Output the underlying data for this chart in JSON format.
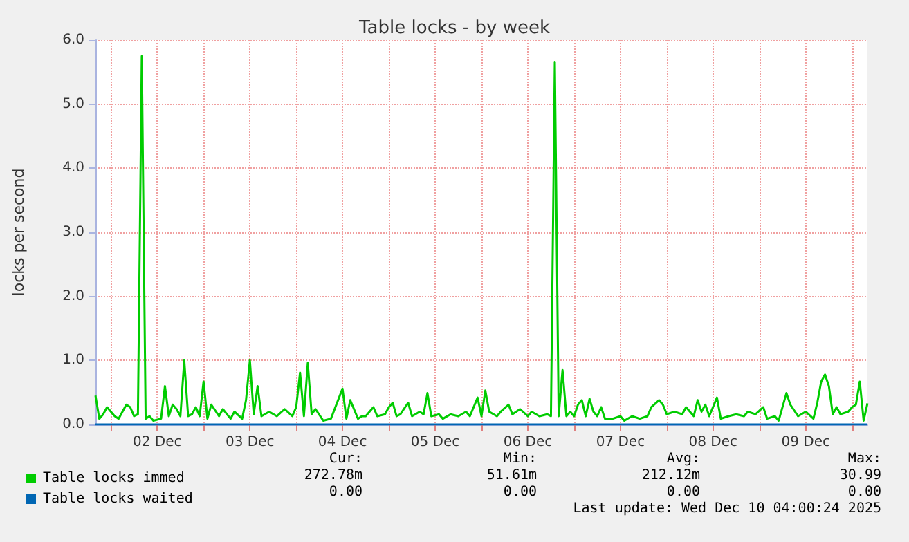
{
  "chart_data": {
    "type": "line",
    "title": "Table locks - by week",
    "ylabel": "locks per second",
    "xlim": [
      "2025-12-01T20:00",
      "2025-12-10T04:00"
    ],
    "xticks": [
      {
        "value": "2025-12-02T00:00",
        "label": null
      },
      {
        "value": "2025-12-02T12:00",
        "label": "02 Dec"
      },
      {
        "value": "2025-12-03T00:00",
        "label": null
      },
      {
        "value": "2025-12-03T12:00",
        "label": "03 Dec"
      },
      {
        "value": "2025-12-04T00:00",
        "label": null
      },
      {
        "value": "2025-12-04T12:00",
        "label": "04 Dec"
      },
      {
        "value": "2025-12-05T00:00",
        "label": null
      },
      {
        "value": "2025-12-05T12:00",
        "label": "05 Dec"
      },
      {
        "value": "2025-12-06T00:00",
        "label": null
      },
      {
        "value": "2025-12-06T12:00",
        "label": "06 Dec"
      },
      {
        "value": "2025-12-07T00:00",
        "label": null
      },
      {
        "value": "2025-12-07T12:00",
        "label": "07 Dec"
      },
      {
        "value": "2025-12-08T00:00",
        "label": null
      },
      {
        "value": "2025-12-08T12:00",
        "label": "08 Dec"
      },
      {
        "value": "2025-12-09T00:00",
        "label": null
      },
      {
        "value": "2025-12-09T12:00",
        "label": "09 Dec"
      },
      {
        "value": "2025-12-10T00:00",
        "label": null
      }
    ],
    "ylim": [
      0,
      6
    ],
    "yticks": [
      {
        "value": 0,
        "label": "0.0"
      },
      {
        "value": 1,
        "label": "1.0"
      },
      {
        "value": 2,
        "label": "2.0"
      },
      {
        "value": 3,
        "label": "3.0"
      },
      {
        "value": 4,
        "label": "4.0"
      },
      {
        "value": 5,
        "label": "5.0"
      },
      {
        "value": 6,
        "label": "6.0"
      }
    ],
    "grid": true,
    "legend": "bottom",
    "marker": "none",
    "series": [
      {
        "name": "Table locks immed",
        "color": "#00cc00",
        "x": [
          "2025-12-01T20:00",
          "2025-12-01T21:00",
          "2025-12-01T22:00",
          "2025-12-01T23:00",
          "2025-12-02T00:00",
          "2025-12-02T01:00",
          "2025-12-02T02:00",
          "2025-12-02T04:00",
          "2025-12-02T05:00",
          "2025-12-02T06:00",
          "2025-12-02T07:00",
          "2025-12-02T08:00",
          "2025-12-02T09:00",
          "2025-12-02T10:00",
          "2025-12-02T11:00",
          "2025-12-02T13:00",
          "2025-12-02T14:00",
          "2025-12-02T15:00",
          "2025-12-02T16:00",
          "2025-12-02T17:00",
          "2025-12-02T18:00",
          "2025-12-02T19:00",
          "2025-12-02T20:00",
          "2025-12-02T21:00",
          "2025-12-02T22:00",
          "2025-12-02T23:00",
          "2025-12-03T00:00",
          "2025-12-03T01:00",
          "2025-12-03T02:00",
          "2025-12-03T04:00",
          "2025-12-03T05:00",
          "2025-12-03T07:00",
          "2025-12-03T08:00",
          "2025-12-03T10:00",
          "2025-12-03T11:00",
          "2025-12-03T12:00",
          "2025-12-03T13:00",
          "2025-12-03T14:00",
          "2025-12-03T15:00",
          "2025-12-03T17:00",
          "2025-12-03T19:00",
          "2025-12-03T21:00",
          "2025-12-03T23:00",
          "2025-12-04T00:00",
          "2025-12-04T01:00",
          "2025-12-04T02:00",
          "2025-12-04T03:00",
          "2025-12-04T04:00",
          "2025-12-04T05:00",
          "2025-12-04T07:00",
          "2025-12-04T09:00",
          "2025-12-04T12:00",
          "2025-12-04T13:00",
          "2025-12-04T14:00",
          "2025-12-04T16:00",
          "2025-12-04T17:00",
          "2025-12-04T18:00",
          "2025-12-04T20:00",
          "2025-12-04T21:00",
          "2025-12-04T23:00",
          "2025-12-05T00:00",
          "2025-12-05T01:00",
          "2025-12-05T02:00",
          "2025-12-05T03:00",
          "2025-12-05T05:00",
          "2025-12-05T06:00",
          "2025-12-05T08:00",
          "2025-12-05T09:00",
          "2025-12-05T10:00",
          "2025-12-05T11:00",
          "2025-12-05T13:00",
          "2025-12-05T14:00",
          "2025-12-05T16:00",
          "2025-12-05T18:00",
          "2025-12-05T20:00",
          "2025-12-05T21:00",
          "2025-12-05T23:00",
          "2025-12-06T00:00",
          "2025-12-06T01:00",
          "2025-12-06T02:00",
          "2025-12-06T04:00",
          "2025-12-06T05:00",
          "2025-12-06T07:00",
          "2025-12-06T08:00",
          "2025-12-06T10:00",
          "2025-12-06T12:00",
          "2025-12-06T13:00",
          "2025-12-06T15:00",
          "2025-12-06T17:00",
          "2025-12-06T18:00",
          "2025-12-06T19:00",
          "2025-12-06T20:00",
          "2025-12-06T21:00",
          "2025-12-06T22:00",
          "2025-12-06T23:00",
          "2025-12-07T00:00",
          "2025-12-07T01:00",
          "2025-12-07T02:00",
          "2025-12-07T03:00",
          "2025-12-07T04:00",
          "2025-12-07T05:00",
          "2025-12-07T06:00",
          "2025-12-07T07:00",
          "2025-12-07T08:00",
          "2025-12-07T10:00",
          "2025-12-07T12:00",
          "2025-12-07T13:00",
          "2025-12-07T15:00",
          "2025-12-07T17:00",
          "2025-12-07T19:00",
          "2025-12-07T20:00",
          "2025-12-07T22:00",
          "2025-12-07T23:00",
          "2025-12-08T00:00",
          "2025-12-08T02:00",
          "2025-12-08T04:00",
          "2025-12-08T05:00",
          "2025-12-08T07:00",
          "2025-12-08T08:00",
          "2025-12-08T09:00",
          "2025-12-08T10:00",
          "2025-12-08T11:00",
          "2025-12-08T13:00",
          "2025-12-08T14:00",
          "2025-12-08T16:00",
          "2025-12-08T18:00",
          "2025-12-08T20:00",
          "2025-12-08T21:00",
          "2025-12-08T23:00",
          "2025-12-09T01:00",
          "2025-12-09T02:00",
          "2025-12-09T04:00",
          "2025-12-09T05:00",
          "2025-12-09T07:00",
          "2025-12-09T08:00",
          "2025-12-09T10:00",
          "2025-12-09T12:00",
          "2025-12-09T14:00",
          "2025-12-09T15:00",
          "2025-12-09T16:00",
          "2025-12-09T17:00",
          "2025-12-09T18:00",
          "2025-12-09T19:00",
          "2025-12-09T20:00",
          "2025-12-09T21:00",
          "2025-12-09T23:00",
          "2025-12-10T00:00",
          "2025-12-10T01:00",
          "2025-12-10T02:00",
          "2025-12-10T03:00",
          "2025-12-10T04:00"
        ],
        "values": [
          0.45,
          0.09,
          0.16,
          0.27,
          0.2,
          0.13,
          0.09,
          0.31,
          0.27,
          0.13,
          0.16,
          5.75,
          0.09,
          0.13,
          0.06,
          0.09,
          0.6,
          0.13,
          0.31,
          0.24,
          0.13,
          1.0,
          0.13,
          0.16,
          0.27,
          0.13,
          0.67,
          0.09,
          0.31,
          0.13,
          0.24,
          0.09,
          0.2,
          0.09,
          0.38,
          1.0,
          0.16,
          0.6,
          0.13,
          0.2,
          0.13,
          0.24,
          0.13,
          0.27,
          0.81,
          0.13,
          0.96,
          0.16,
          0.24,
          0.06,
          0.09,
          0.56,
          0.09,
          0.38,
          0.09,
          0.13,
          0.13,
          0.27,
          0.13,
          0.16,
          0.27,
          0.34,
          0.13,
          0.16,
          0.34,
          0.13,
          0.2,
          0.16,
          0.49,
          0.13,
          0.16,
          0.09,
          0.16,
          0.13,
          0.2,
          0.13,
          0.42,
          0.13,
          0.53,
          0.2,
          0.13,
          0.2,
          0.31,
          0.16,
          0.24,
          0.13,
          0.2,
          0.13,
          0.16,
          0.13,
          5.66,
          0.13,
          0.85,
          0.13,
          0.2,
          0.13,
          0.31,
          0.38,
          0.13,
          0.4,
          0.2,
          0.13,
          0.27,
          0.09,
          0.09,
          0.13,
          0.06,
          0.13,
          0.09,
          0.13,
          0.27,
          0.38,
          0.31,
          0.16,
          0.2,
          0.16,
          0.27,
          0.13,
          0.38,
          0.2,
          0.31,
          0.13,
          0.42,
          0.09,
          0.13,
          0.16,
          0.13,
          0.2,
          0.16,
          0.27,
          0.09,
          0.13,
          0.06,
          0.49,
          0.31,
          0.13,
          0.2,
          0.09,
          0.34,
          0.67,
          0.78,
          0.6,
          0.16,
          0.27,
          0.16,
          0.2,
          0.27,
          0.31,
          0.67,
          0.06,
          0.33
        ]
      },
      {
        "name": "Table locks waited",
        "color": "#0066b3",
        "x": [
          "2025-12-01T20:00",
          "2025-12-10T04:00"
        ],
        "values": [
          0,
          0
        ]
      }
    ],
    "annotations": [
      "Cur:",
      "Min:",
      "Avg:",
      "Max:",
      "272.78m",
      "51.61m",
      "212.12m",
      "30.99",
      "0.00",
      "0.00",
      "0.00",
      "0.00",
      "Last update: Wed Dec 10 04:00:24 2025"
    ]
  }
}
